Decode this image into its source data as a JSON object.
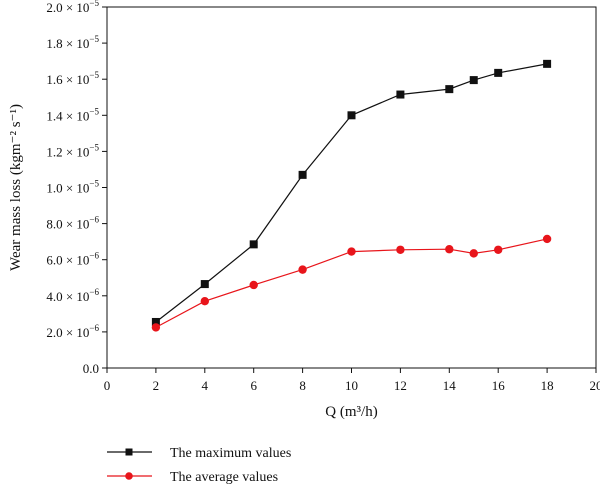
{
  "chart_data": {
    "type": "line",
    "xlabel": "Q (m³/h)",
    "ylabel": "Wear mass loss (kgm⁻² s⁻¹)",
    "xlim": [
      0,
      20
    ],
    "ylim": [
      0,
      2e-05
    ],
    "xticks": [
      0,
      2,
      4,
      6,
      8,
      10,
      12,
      14,
      16,
      18,
      20
    ],
    "yticks": [
      {
        "value": 0,
        "mantissa": "0.0",
        "exp": ""
      },
      {
        "value": 2e-06,
        "mantissa": "2.0",
        "exp": "−6"
      },
      {
        "value": 4e-06,
        "mantissa": "4.0",
        "exp": "−6"
      },
      {
        "value": 6e-06,
        "mantissa": "6.0",
        "exp": "−6"
      },
      {
        "value": 8e-06,
        "mantissa": "8.0",
        "exp": "−6"
      },
      {
        "value": 1e-05,
        "mantissa": "1.0",
        "exp": "−5"
      },
      {
        "value": 1.2e-05,
        "mantissa": "1.2",
        "exp": "−5"
      },
      {
        "value": 1.4e-05,
        "mantissa": "1.4",
        "exp": "−5"
      },
      {
        "value": 1.6e-05,
        "mantissa": "1.6",
        "exp": "−5"
      },
      {
        "value": 1.8e-05,
        "mantissa": "1.8",
        "exp": "−5"
      },
      {
        "value": 2e-05,
        "mantissa": "2.0",
        "exp": "−5"
      }
    ],
    "grid": false,
    "legend_position": "bottom",
    "series": [
      {
        "name": "The maximum values",
        "color": "#111111",
        "marker": "square",
        "x": [
          2,
          4,
          6,
          8,
          10,
          12,
          14,
          15,
          16,
          18
        ],
        "y": [
          2.55e-06,
          4.65e-06,
          6.85e-06,
          1.07e-05,
          1.4e-05,
          1.515e-05,
          1.545e-05,
          1.595e-05,
          1.635e-05,
          1.685e-05
        ]
      },
      {
        "name": "The average values",
        "color": "#e8151b",
        "marker": "circle",
        "x": [
          2,
          4,
          6,
          8,
          10,
          12,
          14,
          15,
          16,
          18
        ],
        "y": [
          2.25e-06,
          3.7e-06,
          4.6e-06,
          5.45e-06,
          6.45e-06,
          6.55e-06,
          6.58e-06,
          6.35e-06,
          6.55e-06,
          7.15e-06
        ]
      }
    ]
  }
}
